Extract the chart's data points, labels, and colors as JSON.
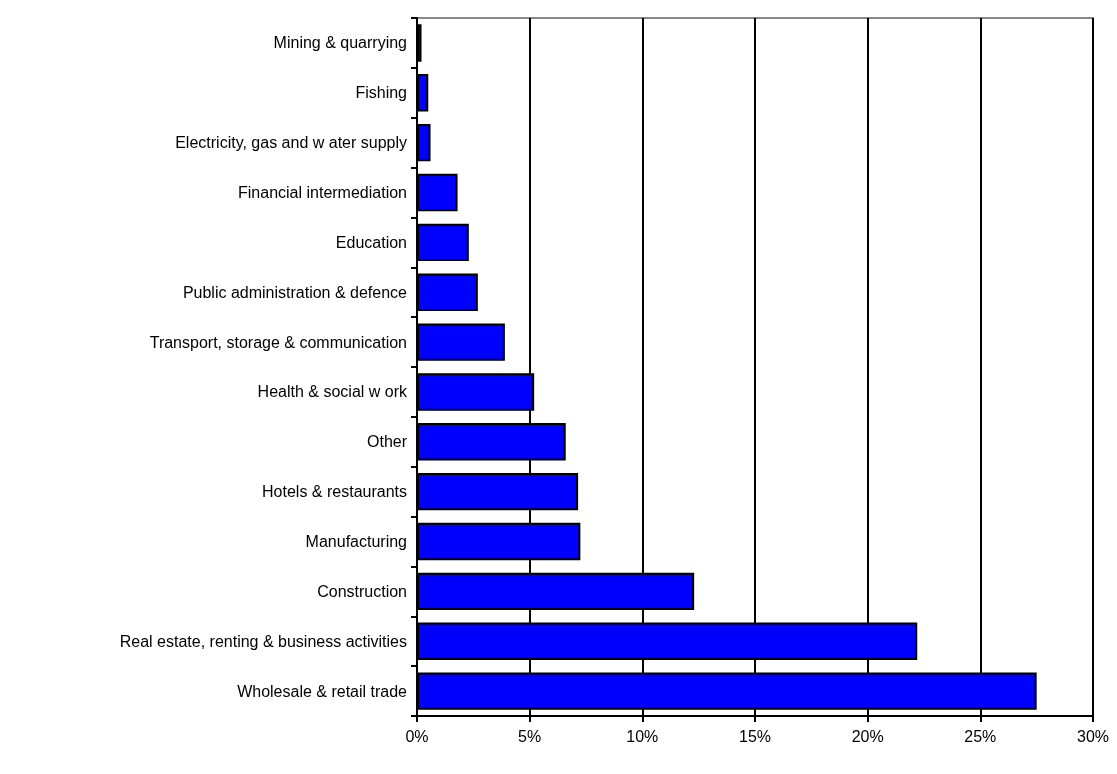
{
  "chart_data": {
    "type": "bar",
    "orientation": "horizontal",
    "categories": [
      "Mining & quarrying",
      "Fishing",
      "Electricity, gas and w ater supply",
      "Financial intermediation",
      "Education",
      "Public administration & defence",
      "Transport, storage & communication",
      "Health & social w ork",
      "Other",
      "Hotels & restaurants",
      "Manufacturing",
      "Construction",
      "Real estate, renting & business activities",
      "Wholesale & retail trade"
    ],
    "values": [
      0.2,
      0.5,
      0.6,
      1.8,
      2.3,
      2.7,
      3.9,
      5.2,
      6.6,
      7.15,
      7.25,
      12.3,
      22.2,
      27.5
    ],
    "color": "#0000ff",
    "xlim": [
      0,
      30
    ],
    "xticks": [
      {
        "value": 0,
        "label": "0%"
      },
      {
        "value": 5,
        "label": "5%"
      },
      {
        "value": 10,
        "label": "10%"
      },
      {
        "value": 15,
        "label": "15%"
      },
      {
        "value": 20,
        "label": "20%"
      },
      {
        "value": 25,
        "label": "25%"
      },
      {
        "value": 30,
        "label": "30%"
      }
    ],
    "grid": "x"
  }
}
